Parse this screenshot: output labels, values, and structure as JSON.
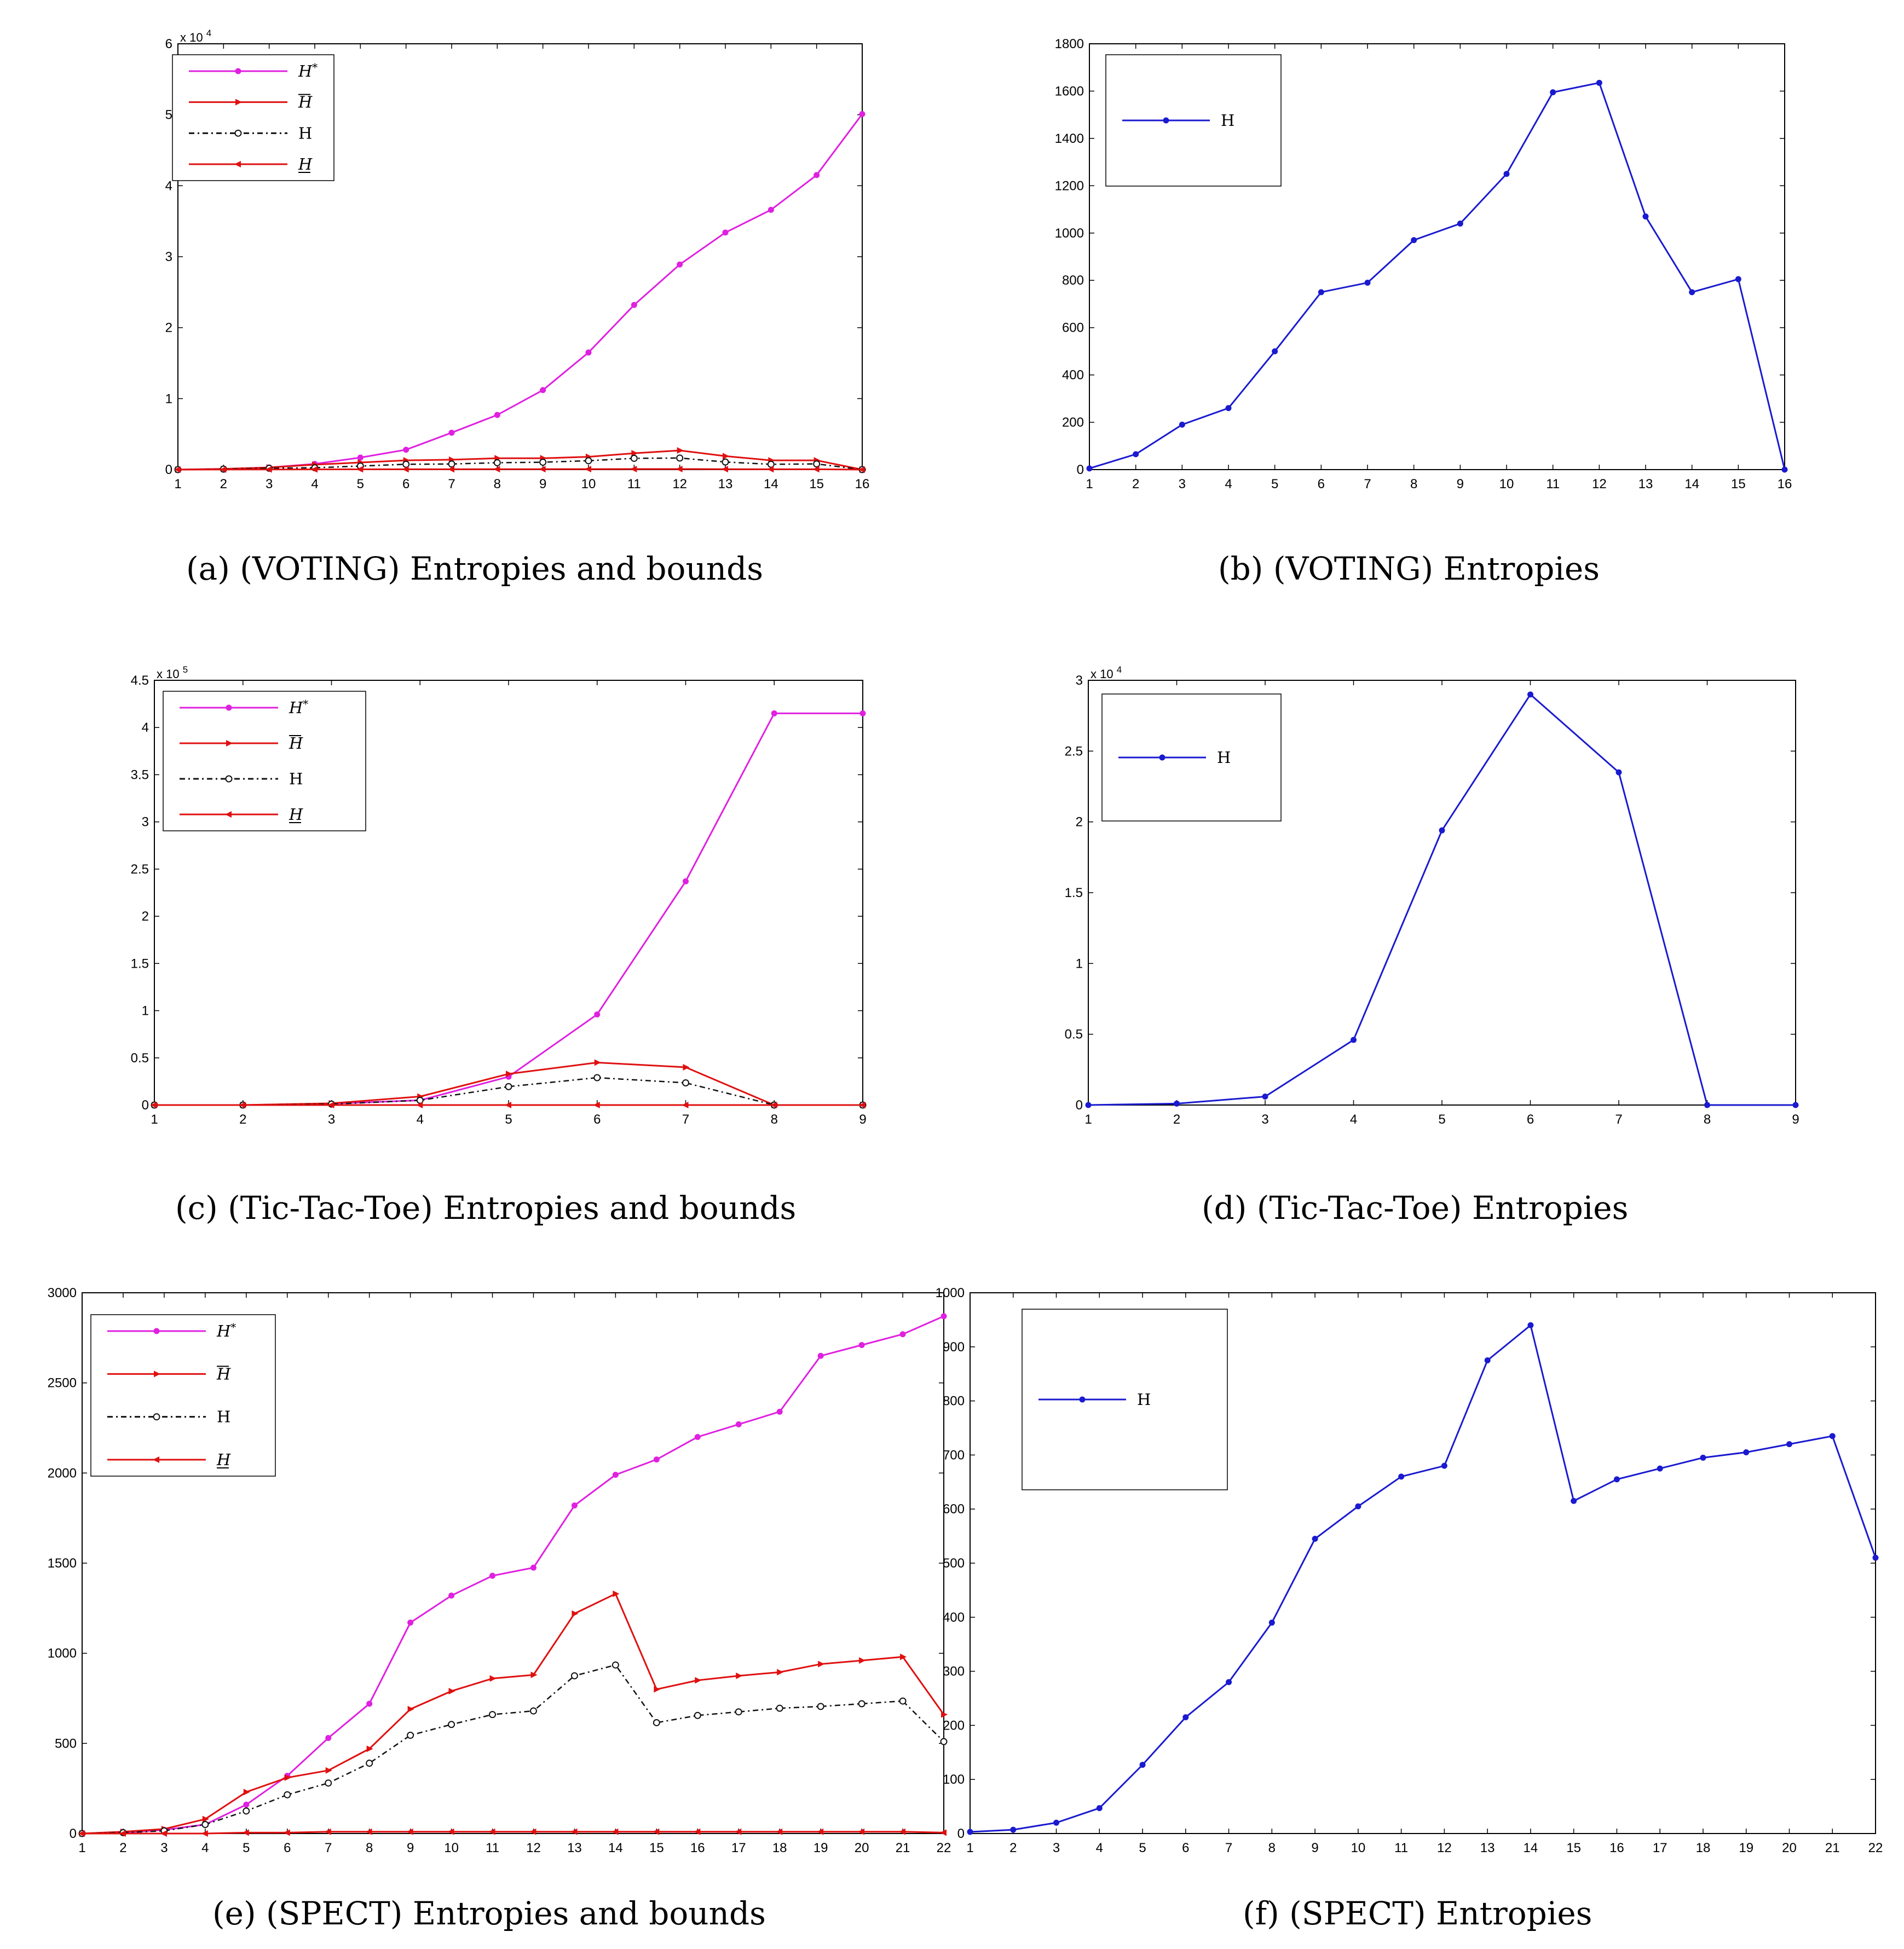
{
  "chart_data": [
    {
      "id": "a",
      "type": "line",
      "caption": "(a)  (VOTING) Entropies and bounds",
      "x": [
        1,
        2,
        3,
        4,
        5,
        6,
        7,
        8,
        9,
        10,
        11,
        12,
        13,
        14,
        15,
        16
      ],
      "ylim": [
        0,
        60000
      ],
      "y_ticks": [
        0,
        10000,
        20000,
        30000,
        40000,
        50000,
        60000
      ],
      "y_tick_labels": [
        "0",
        "1",
        "2",
        "3",
        "4",
        "5",
        "6"
      ],
      "y_exponent": "x 10",
      "y_exponent_power": "4",
      "legend": "top-left",
      "grid": false,
      "series": [
        {
          "name": "H*",
          "legend_kind": "star",
          "color": "#e020e0",
          "style": "solid",
          "marker": "dot",
          "values": [
            0,
            100,
            300,
            800,
            1700,
            2800,
            5200,
            7700,
            11200,
            16500,
            23200,
            28900,
            33400,
            36600,
            41500,
            50100
          ]
        },
        {
          "name": "H",
          "legend_kind": "over",
          "color": "#e01010",
          "style": "solid",
          "marker": "tri-right",
          "values": [
            0,
            100,
            300,
            700,
            1000,
            1300,
            1400,
            1600,
            1600,
            1800,
            2300,
            2700,
            1900,
            1300,
            1300,
            0
          ]
        },
        {
          "name": "H",
          "legend_kind": "plain",
          "color": "#111111",
          "style": "dashed",
          "marker": "circle",
          "values": [
            0,
            70,
            190,
            260,
            500,
            750,
            790,
            970,
            1040,
            1250,
            1590,
            1630,
            1070,
            750,
            800,
            0
          ]
        },
        {
          "name": "H",
          "legend_kind": "under",
          "color": "#e01010",
          "style": "solid",
          "marker": "tri-left",
          "values": [
            0,
            10,
            20,
            30,
            40,
            50,
            50,
            60,
            60,
            70,
            80,
            80,
            60,
            50,
            50,
            0
          ]
        }
      ]
    },
    {
      "id": "b",
      "type": "line",
      "caption": "(b)  (VOTING) Entropies",
      "x": [
        1,
        2,
        3,
        4,
        5,
        6,
        7,
        8,
        9,
        10,
        11,
        12,
        13,
        14,
        15,
        16
      ],
      "ylim": [
        0,
        1800
      ],
      "y_ticks": [
        0,
        200,
        400,
        600,
        800,
        1000,
        1200,
        1400,
        1600,
        1800
      ],
      "y_tick_labels": [
        "0",
        "200",
        "400",
        "600",
        "800",
        "1000",
        "1200",
        "1400",
        "1600",
        "1800"
      ],
      "legend": "top-left",
      "grid": false,
      "series": [
        {
          "name": "H",
          "legend_kind": "plain",
          "color": "#1a1ad0",
          "style": "solid",
          "marker": "dot",
          "values": [
            5,
            65,
            190,
            260,
            500,
            750,
            790,
            970,
            1040,
            1250,
            1595,
            1635,
            1070,
            750,
            805,
            0
          ]
        }
      ]
    },
    {
      "id": "c",
      "type": "line",
      "caption": "(c)  (Tic-Tac-Toe) Entropies and bounds",
      "x": [
        1,
        2,
        3,
        4,
        5,
        6,
        7,
        8,
        9
      ],
      "ylim": [
        0,
        450000
      ],
      "y_ticks": [
        0,
        50000,
        100000,
        150000,
        200000,
        250000,
        300000,
        350000,
        400000,
        450000
      ],
      "y_tick_labels": [
        "0",
        "0.5",
        "1",
        "1.5",
        "2",
        "2.5",
        "3",
        "3.5",
        "4",
        "4.5"
      ],
      "y_exponent": "x 10",
      "y_exponent_power": "5",
      "legend": "top-left",
      "grid": false,
      "series": [
        {
          "name": "H*",
          "legend_kind": "star",
          "color": "#e020e0",
          "style": "solid",
          "marker": "dot",
          "values": [
            0,
            0,
            1500,
            5000,
            30000,
            96000,
            237000,
            415000,
            415000
          ]
        },
        {
          "name": "H",
          "legend_kind": "over",
          "color": "#e01010",
          "style": "solid",
          "marker": "tri-right",
          "values": [
            0,
            0,
            1800,
            9000,
            33000,
            45000,
            40000,
            0,
            0
          ]
        },
        {
          "name": "H",
          "legend_kind": "plain",
          "color": "#111111",
          "style": "dashed",
          "marker": "circle",
          "values": [
            0,
            0,
            1000,
            5000,
            19500,
            29000,
            23500,
            0,
            0
          ]
        },
        {
          "name": "H",
          "legend_kind": "under",
          "color": "#e01010",
          "style": "solid",
          "marker": "tri-left",
          "values": [
            0,
            0,
            0,
            0,
            0,
            0,
            0,
            0,
            0
          ]
        }
      ]
    },
    {
      "id": "d",
      "type": "line",
      "caption": "(d)  (Tic-Tac-Toe) Entropies",
      "x": [
        1,
        2,
        3,
        4,
        5,
        6,
        7,
        8,
        9
      ],
      "ylim": [
        0,
        30000
      ],
      "y_ticks": [
        0,
        5000,
        10000,
        15000,
        20000,
        25000,
        30000
      ],
      "y_tick_labels": [
        "0",
        "0.5",
        "1",
        "1.5",
        "2",
        "2.5",
        "3"
      ],
      "y_exponent": "x 10",
      "y_exponent_power": "4",
      "legend": "top-left",
      "grid": false,
      "series": [
        {
          "name": "H",
          "legend_kind": "plain",
          "color": "#1a1ad0",
          "style": "solid",
          "marker": "dot",
          "values": [
            0,
            100,
            600,
            4600,
            19400,
            29000,
            23500,
            0,
            0
          ]
        }
      ]
    },
    {
      "id": "e",
      "type": "line",
      "caption": "(e)  (SPECT) Entropies and bounds",
      "x": [
        1,
        2,
        3,
        4,
        5,
        6,
        7,
        8,
        9,
        10,
        11,
        12,
        13,
        14,
        15,
        16,
        17,
        18,
        19,
        20,
        21,
        22
      ],
      "ylim": [
        0,
        3000
      ],
      "y_ticks": [
        0,
        500,
        1000,
        1500,
        2000,
        2500,
        3000
      ],
      "y_tick_labels": [
        "0",
        "500",
        "1000",
        "1500",
        "2000",
        "2500",
        "3000"
      ],
      "legend": "top-left",
      "grid": false,
      "series": [
        {
          "name": "H*",
          "legend_kind": "star",
          "color": "#e020e0",
          "style": "solid",
          "marker": "dot",
          "values": [
            0,
            5,
            20,
            50,
            160,
            320,
            530,
            720,
            1170,
            1320,
            1430,
            1475,
            1820,
            1990,
            2075,
            2200,
            2270,
            2340,
            2650,
            2710,
            2770,
            2870
          ]
        },
        {
          "name": "H",
          "legend_kind": "over",
          "color": "#e01010",
          "style": "solid",
          "marker": "tri-right",
          "values": [
            0,
            10,
            25,
            80,
            230,
            310,
            350,
            470,
            690,
            790,
            860,
            880,
            1220,
            1330,
            800,
            850,
            875,
            895,
            940,
            960,
            980,
            660
          ]
        },
        {
          "name": "H",
          "legend_kind": "plain",
          "color": "#111111",
          "style": "dashed",
          "marker": "circle",
          "values": [
            0,
            5,
            15,
            50,
            125,
            215,
            280,
            390,
            545,
            605,
            660,
            680,
            875,
            935,
            615,
            655,
            675,
            695,
            705,
            720,
            735,
            510
          ]
        },
        {
          "name": "H",
          "legend_kind": "under",
          "color": "#e01010",
          "style": "solid",
          "marker": "tri-left",
          "values": [
            0,
            0,
            0,
            0,
            5,
            5,
            10,
            10,
            10,
            10,
            10,
            10,
            10,
            10,
            10,
            10,
            10,
            10,
            10,
            10,
            10,
            5
          ]
        }
      ]
    },
    {
      "id": "f",
      "type": "line",
      "caption": "(f)  (SPECT) Entropies",
      "x": [
        1,
        2,
        3,
        4,
        5,
        6,
        7,
        8,
        9,
        10,
        11,
        12,
        13,
        14,
        15,
        16,
        17,
        18,
        19,
        20,
        21,
        22
      ],
      "ylim": [
        0,
        1000
      ],
      "y_ticks": [
        0,
        100,
        200,
        300,
        400,
        500,
        600,
        700,
        800,
        900,
        1000
      ],
      "y_tick_labels": [
        "0",
        "100",
        "200",
        "300",
        "400",
        "500",
        "600",
        "700",
        "800",
        "900",
        "1000"
      ],
      "legend": "top-left",
      "grid": false,
      "series": [
        {
          "name": "H",
          "legend_kind": "plain",
          "color": "#1a1ad0",
          "style": "solid",
          "marker": "dot",
          "values": [
            3,
            7,
            20,
            47,
            127,
            215,
            280,
            390,
            545,
            605,
            660,
            680,
            875,
            940,
            615,
            655,
            675,
            695,
            705,
            720,
            735,
            510
          ]
        }
      ]
    }
  ]
}
